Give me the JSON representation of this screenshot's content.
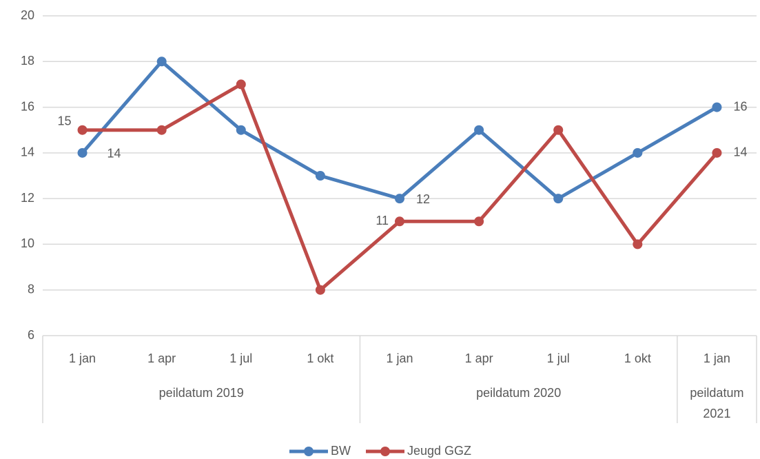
{
  "chart_data": {
    "type": "line",
    "categories": [
      "1 jan",
      "1 apr",
      "1 jul",
      "1 okt",
      "1 jan",
      "1 apr",
      "1 jul",
      "1 okt",
      "1 jan"
    ],
    "groups": [
      {
        "label": "peildatum 2019",
        "span": 4
      },
      {
        "label": "peildatum 2020",
        "span": 4
      },
      {
        "label": "peildatum 2021",
        "span": 1
      }
    ],
    "series": [
      {
        "name": "BW",
        "color": "#4a7ebb",
        "values": [
          14,
          18,
          15,
          13,
          12,
          15,
          12,
          14,
          16
        ],
        "label_points": [
          0,
          4,
          8
        ]
      },
      {
        "name": "Jeugd GGZ",
        "color": "#be4b48",
        "values": [
          15,
          15,
          17,
          8,
          11,
          11,
          15,
          10,
          14
        ],
        "label_points": [
          0,
          4,
          8
        ]
      }
    ],
    "ylim": [
      6,
      20
    ],
    "yticks": [
      6,
      8,
      10,
      12,
      14,
      16,
      18,
      20
    ],
    "grid": true,
    "legend": "bottom"
  }
}
